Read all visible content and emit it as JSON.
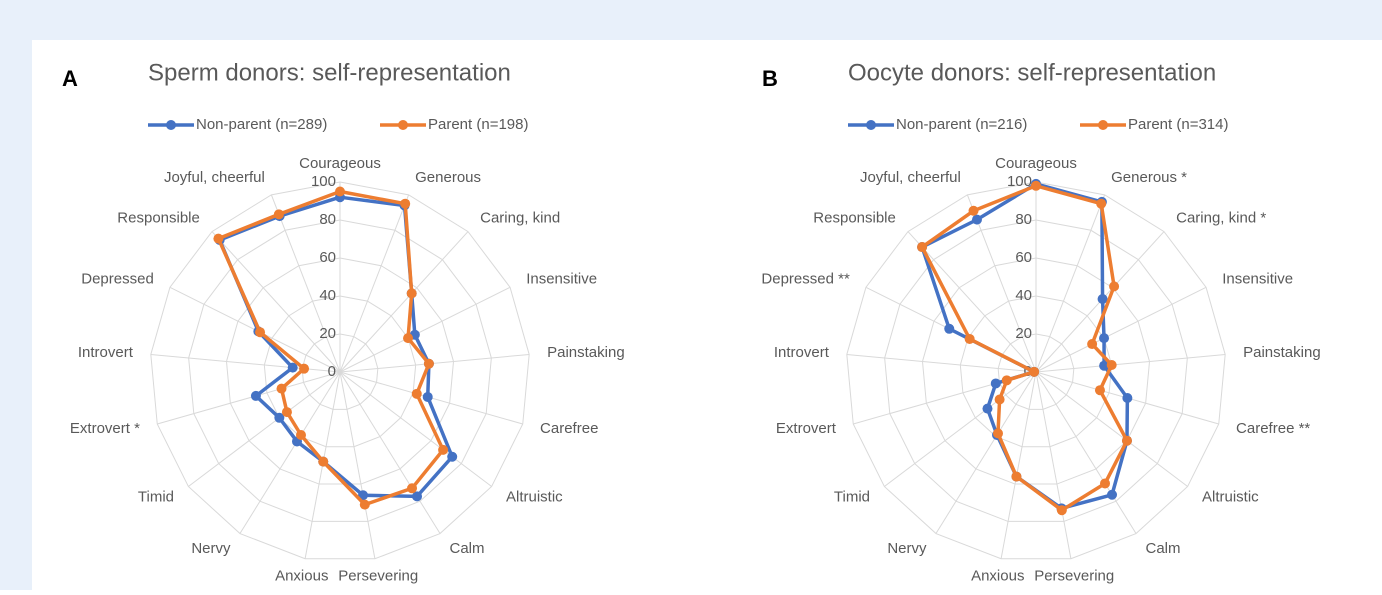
{
  "chart_data": [
    {
      "type": "radar",
      "panel": "A",
      "title": "Sperm donors: self-representation",
      "categories": [
        "Courageous",
        "Generous",
        "Caring, kind",
        "Insensitive",
        "Painstaking",
        "Carefree",
        "Altruistic",
        "Calm",
        "Persevering",
        "Anxious",
        "Nervy",
        "Timid",
        "Extrovert  *",
        "Introvert",
        "Depressed",
        "Responsible",
        "Joyful, cheerful"
      ],
      "series": [
        {
          "name": "Non-parent (n=289)",
          "color": "#4472c4",
          "values": [
            92,
            94,
            56,
            44,
            47,
            48,
            74,
            77,
            66,
            48,
            43,
            40,
            46,
            25,
            48,
            94,
            88
          ]
        },
        {
          "name": "Parent (n=198)",
          "color": "#ed7d31",
          "values": [
            95,
            95,
            56,
            40,
            47,
            42,
            68,
            72,
            71,
            48,
            39,
            35,
            32,
            19,
            47,
            95,
            89
          ]
        }
      ],
      "ylim": [
        0,
        100
      ],
      "yticks": [
        0,
        20,
        40,
        60,
        80,
        100
      ],
      "grid": true,
      "legend": "top"
    },
    {
      "type": "radar",
      "panel": "B",
      "title": "Oocyte donors: self-representation",
      "categories": [
        "Courageous",
        "Generous  *",
        "Caring, kind  *",
        "Insensitive",
        "Painstaking",
        "Carefree **",
        "Altruistic",
        "Calm",
        "Persevering",
        "Anxious",
        "Nervy",
        "Timid",
        "Extrovert",
        "Introvert",
        "Depressed  **",
        "Responsible",
        "Joyful, cheerful"
      ],
      "series": [
        {
          "name": "Non-parent (n=216)",
          "color": "#4472c4",
          "values": [
            99,
            96,
            52,
            40,
            36,
            50,
            60,
            76,
            73,
            56,
            39,
            32,
            22,
            1,
            51,
            89,
            86
          ]
        },
        {
          "name": "Parent (n=314)",
          "color": "#ed7d31",
          "values": [
            98,
            95,
            61,
            33,
            40,
            35,
            60,
            69,
            74,
            56,
            38,
            24,
            16,
            1,
            39,
            89,
            91
          ]
        }
      ],
      "ylim": [
        0,
        100
      ],
      "yticks": [
        0,
        20,
        40,
        60,
        80,
        100
      ],
      "grid": true,
      "legend": "top"
    }
  ]
}
